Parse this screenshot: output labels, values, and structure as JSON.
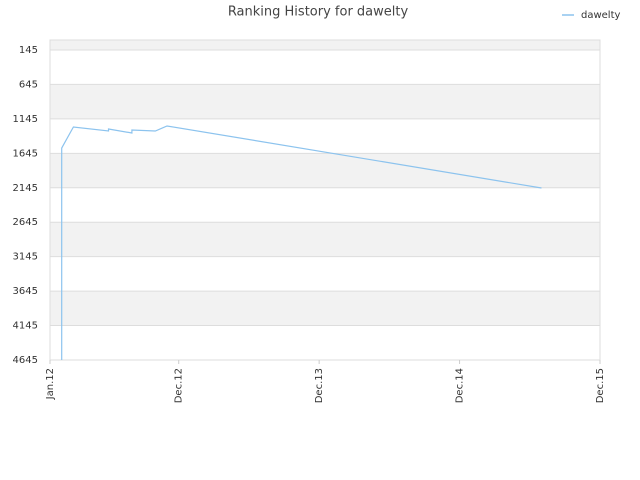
{
  "chart_data": {
    "type": "line",
    "title": "Ranking History for dawelty",
    "x": [
      "2012-02",
      "2012-02",
      "2012-03",
      "2012-06",
      "2012-06",
      "2012-08",
      "2012-08",
      "2012-10",
      "2012-11",
      "2015-07"
    ],
    "series": [
      {
        "name": "dawelty",
        "color": "#8cc3ee",
        "values": [
          4645,
          1568,
          1263,
          1321,
          1292,
          1350,
          1306,
          1321,
          1248,
          2148
        ]
      }
    ],
    "xlim": [
      "2012-01",
      "2015-12"
    ],
    "xticks": [
      {
        "value": "2012-01",
        "label": "Jan.12"
      },
      {
        "value": "2012-12",
        "label": "Dec.12"
      },
      {
        "value": "2013-12",
        "label": "Dec.13"
      },
      {
        "value": "2014-12",
        "label": "Dec.14"
      },
      {
        "value": "2015-12",
        "label": "Dec.15"
      }
    ],
    "ylim": [
      4645,
      0
    ],
    "yticks": [
      145,
      645,
      1145,
      1645,
      2145,
      2645,
      3145,
      3645,
      4145,
      4645
    ],
    "grid": true,
    "legend": "top-right"
  }
}
